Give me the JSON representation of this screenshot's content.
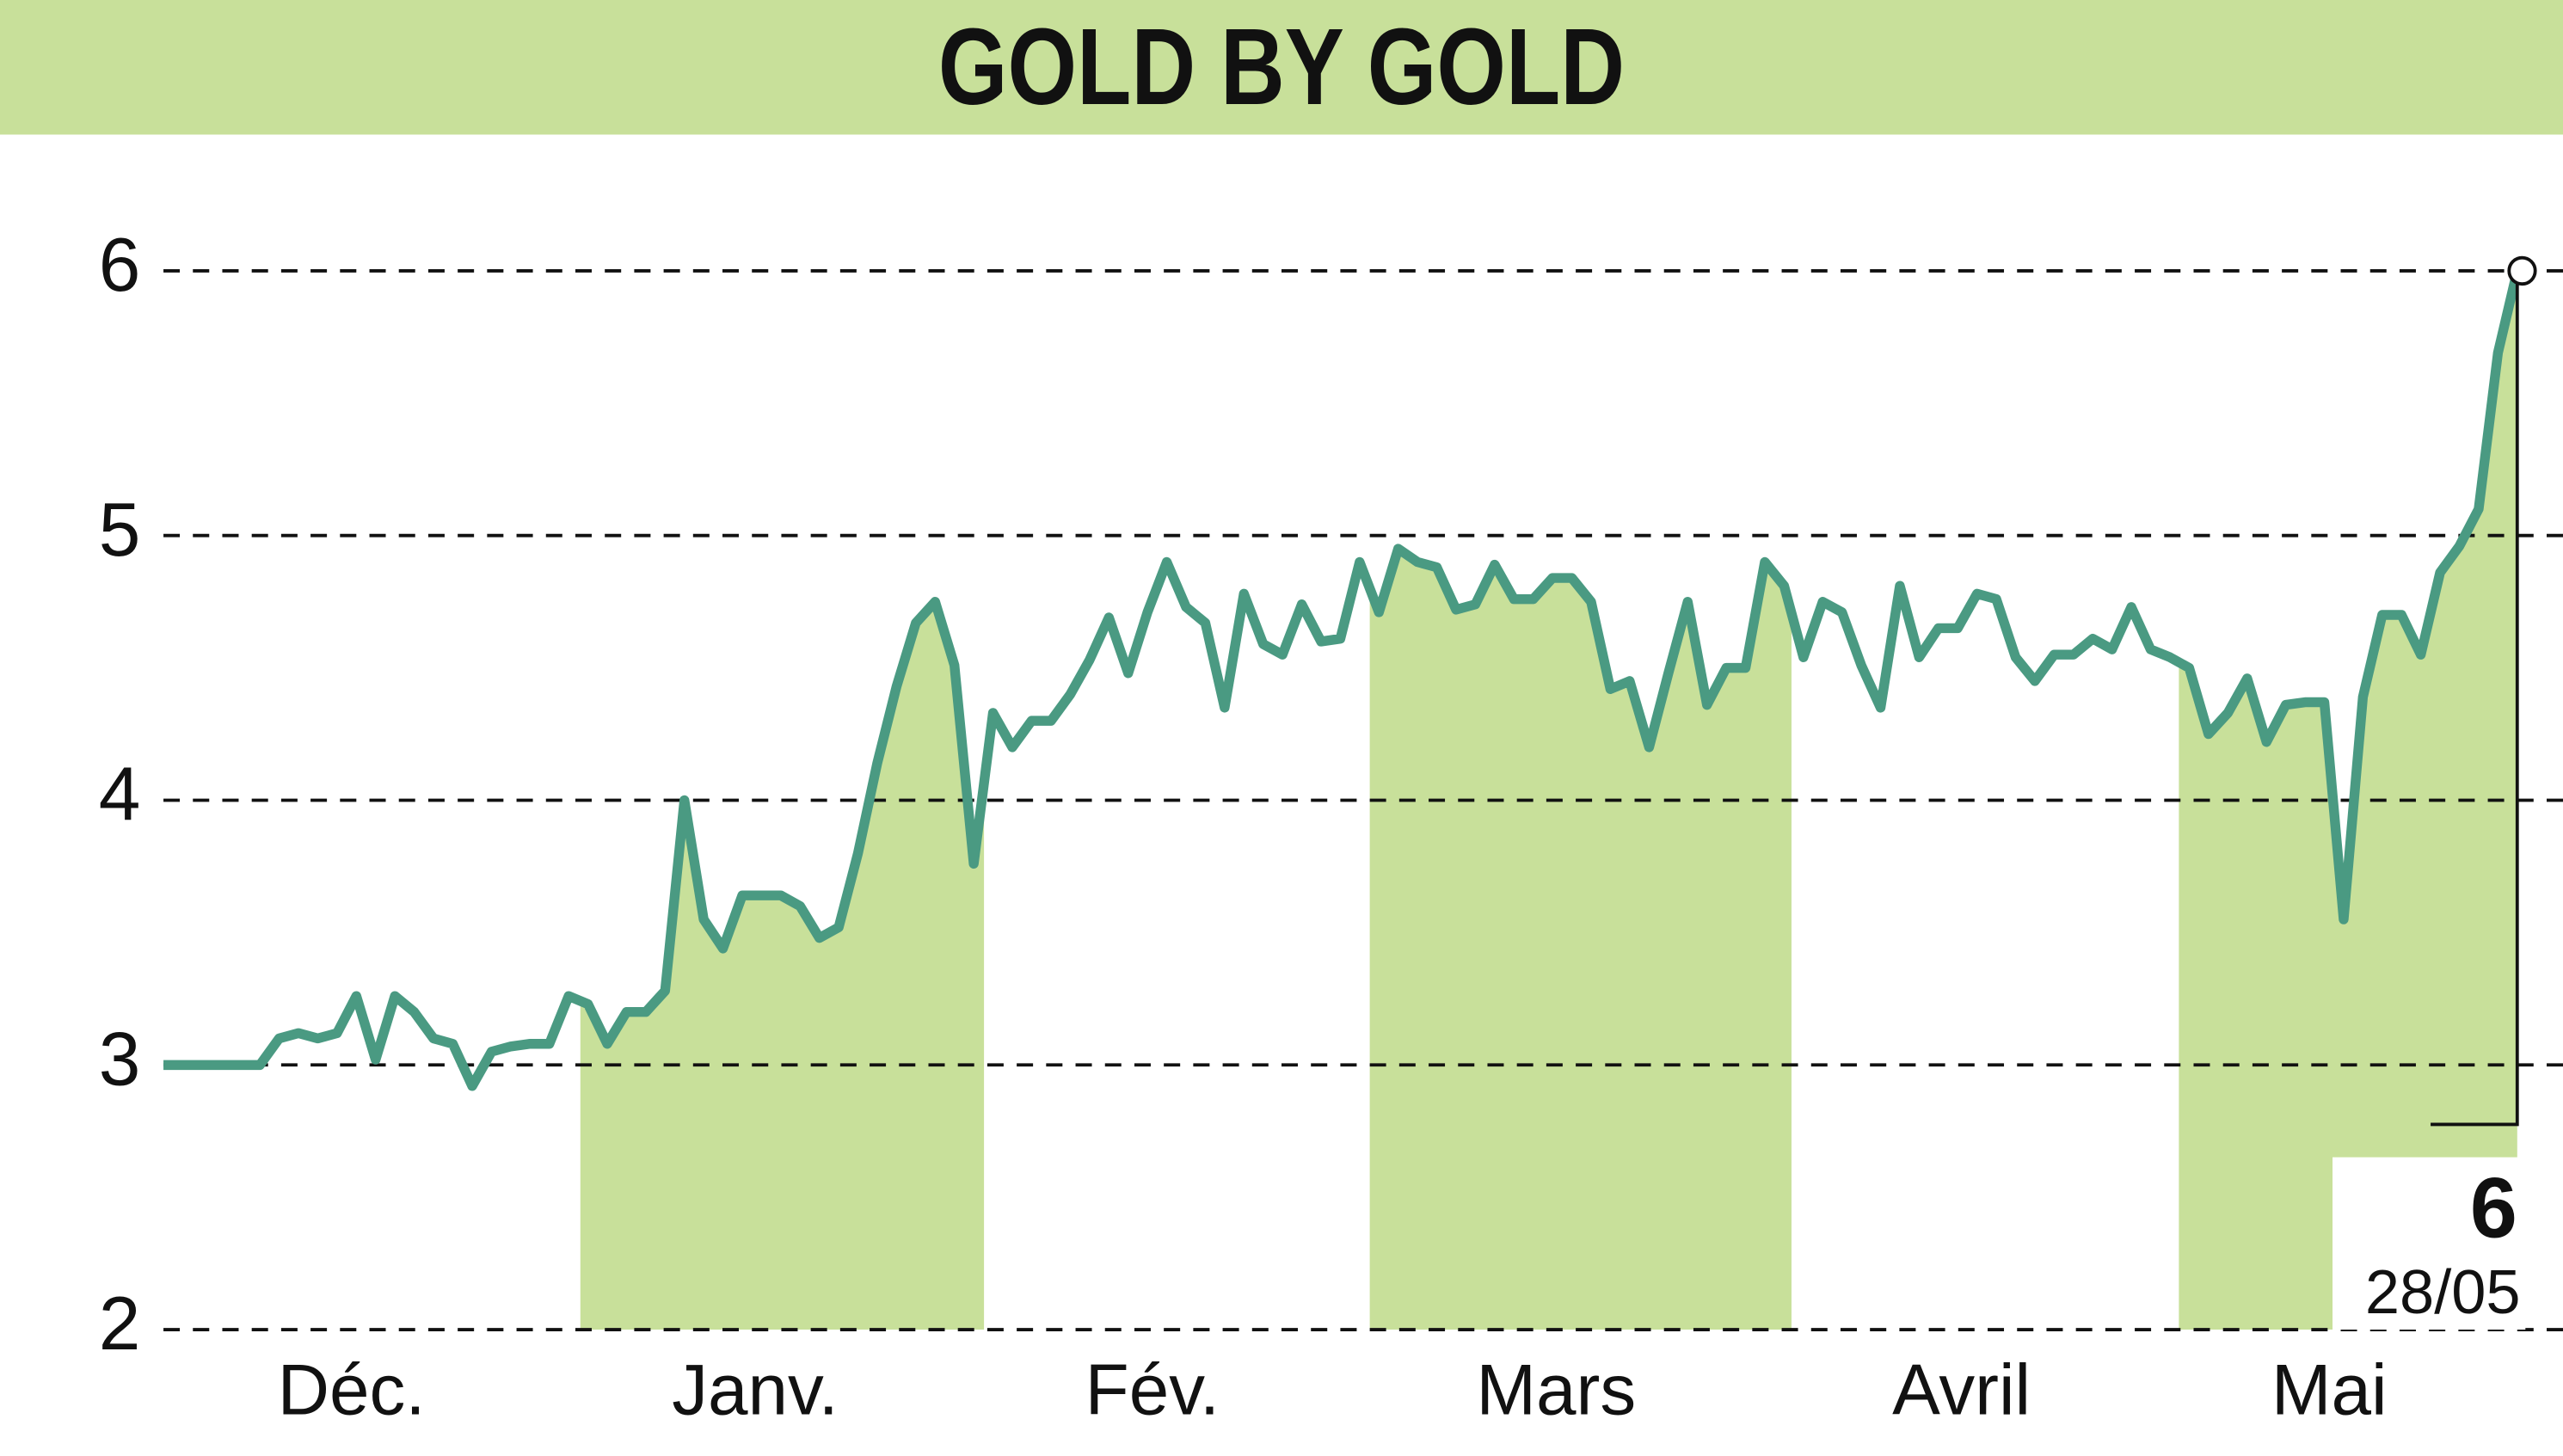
{
  "chart_data": {
    "type": "line",
    "title": "GOLD BY GOLD",
    "months": [
      "Déc.",
      "Janv.",
      "Fév.",
      "Mars",
      "Avril",
      "Mai"
    ],
    "last_date": "28/05",
    "color": "#4a9a82",
    "shade_color": "#c8e09a",
    "ylim": [
      2,
      6
    ],
    "yticks": [
      2,
      3,
      4,
      5,
      6
    ],
    "grid": true,
    "values": [
      3.0,
      3.0,
      3.0,
      3.0,
      3.0,
      3.0,
      3.1,
      3.12,
      3.1,
      3.12,
      3.26,
      3.02,
      3.26,
      3.2,
      3.1,
      3.08,
      2.92,
      3.05,
      3.07,
      3.08,
      3.08,
      3.26,
      3.23,
      3.08,
      3.2,
      3.2,
      3.28,
      4.0,
      3.55,
      3.44,
      3.64,
      3.64,
      3.64,
      3.6,
      3.48,
      3.52,
      3.8,
      4.14,
      4.43,
      4.67,
      4.75,
      4.51,
      3.76,
      4.33,
      4.2,
      4.3,
      4.3,
      4.4,
      4.53,
      4.69,
      4.48,
      4.71,
      4.9,
      4.73,
      4.67,
      4.35,
      4.78,
      4.59,
      4.55,
      4.74,
      4.6,
      4.61,
      4.9,
      4.71,
      4.95,
      4.9,
      4.88,
      4.72,
      4.74,
      4.89,
      4.76,
      4.76,
      4.84,
      4.84,
      4.75,
      4.42,
      4.45,
      4.2,
      4.48,
      4.75,
      4.36,
      4.5,
      4.5,
      4.9,
      4.81,
      4.54,
      4.75,
      4.71,
      4.51,
      4.35,
      4.81,
      4.54,
      4.65,
      4.65,
      4.78,
      4.76,
      4.54,
      4.45,
      4.55,
      4.55,
      4.61,
      4.57,
      4.73,
      4.57,
      4.54,
      4.5,
      4.25,
      4.33,
      4.46,
      4.22,
      4.36,
      4.37,
      4.37,
      3.55,
      4.39,
      4.7,
      4.7,
      4.55,
      4.86,
      4.96,
      5.1,
      5.69,
      6.0
    ]
  }
}
